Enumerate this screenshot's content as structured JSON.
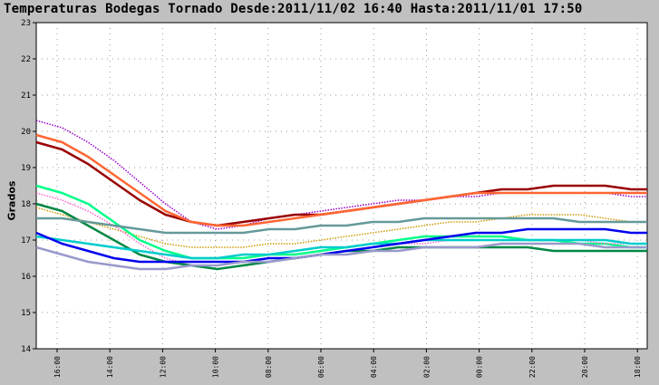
{
  "title": "Temperaturas Bodegas Tornado Desde:2011/11/02 16:40 Hasta:2011/11/01 17:50",
  "chart_data": {
    "type": "line",
    "ylabel": "Grados",
    "xlabel": "",
    "ylim": [
      14,
      23
    ],
    "yticks": [
      14,
      15,
      16,
      17,
      18,
      19,
      20,
      21,
      22,
      23
    ],
    "xticks": [
      "16:00",
      "14:00",
      "12:00",
      "10:00",
      "08:00",
      "06:00",
      "04:00",
      "02:00",
      "00:00",
      "22:00",
      "20:00",
      "18:00"
    ],
    "grid": true,
    "x": [
      0,
      4,
      8,
      12,
      16,
      20,
      24,
      28,
      32,
      36,
      40,
      44,
      48,
      52,
      56,
      60,
      64,
      68,
      72,
      76,
      80,
      84,
      88,
      92,
      94.5
    ],
    "series": [
      {
        "color": "#9900cc",
        "style": "dotted",
        "values": [
          20.3,
          20.1,
          19.7,
          19.2,
          18.6,
          18.0,
          17.5,
          17.3,
          17.4,
          17.6,
          17.7,
          17.8,
          17.9,
          18.0,
          18.1,
          18.1,
          18.2,
          18.2,
          18.3,
          18.3,
          18.3,
          18.3,
          18.3,
          18.2,
          18.2
        ]
      },
      {
        "color": "#990000",
        "style": "solid",
        "values": [
          19.7,
          19.5,
          19.1,
          18.6,
          18.1,
          17.7,
          17.5,
          17.4,
          17.5,
          17.6,
          17.7,
          17.7,
          17.8,
          17.9,
          18.0,
          18.1,
          18.2,
          18.3,
          18.4,
          18.4,
          18.5,
          18.5,
          18.5,
          18.4,
          18.4
        ]
      },
      {
        "color": "#ff6633",
        "style": "solid",
        "values": [
          19.9,
          19.7,
          19.3,
          18.8,
          18.3,
          17.8,
          17.5,
          17.4,
          17.4,
          17.5,
          17.6,
          17.7,
          17.8,
          17.9,
          18.0,
          18.1,
          18.2,
          18.3,
          18.3,
          18.3,
          18.3,
          18.3,
          18.3,
          18.3,
          18.3
        ]
      },
      {
        "color": "#cc9900",
        "style": "dotted",
        "values": [
          17.9,
          17.7,
          17.5,
          17.3,
          17.1,
          16.9,
          16.8,
          16.8,
          16.8,
          16.9,
          16.9,
          17.0,
          17.1,
          17.2,
          17.3,
          17.4,
          17.5,
          17.5,
          17.6,
          17.7,
          17.7,
          17.7,
          17.6,
          17.5,
          17.5
        ]
      },
      {
        "color": "#00ff88",
        "style": "solid",
        "values": [
          18.5,
          18.3,
          18.0,
          17.5,
          17.0,
          16.7,
          16.5,
          16.5,
          16.5,
          16.6,
          16.6,
          16.7,
          16.8,
          16.9,
          17.0,
          17.1,
          17.1,
          17.1,
          17.1,
          17.0,
          17.0,
          16.9,
          16.9,
          16.8,
          16.8
        ]
      },
      {
        "color": "#ff66cc",
        "style": "dotted",
        "values": [
          18.3,
          18.1,
          17.8,
          17.4,
          16.9,
          16.5,
          16.3,
          16.2,
          16.3,
          16.4,
          16.5,
          16.6,
          16.7,
          16.8,
          16.9,
          16.9,
          17.0,
          17.0,
          17.0,
          17.0,
          17.0,
          17.0,
          16.9,
          16.9,
          16.9
        ]
      },
      {
        "color": "#008844",
        "style": "solid",
        "values": [
          18.0,
          17.8,
          17.4,
          17.0,
          16.6,
          16.4,
          16.3,
          16.2,
          16.3,
          16.4,
          16.5,
          16.6,
          16.7,
          16.7,
          16.8,
          16.8,
          16.8,
          16.8,
          16.8,
          16.8,
          16.7,
          16.7,
          16.7,
          16.7,
          16.7
        ]
      },
      {
        "color": "#669999",
        "style": "solid",
        "values": [
          17.6,
          17.6,
          17.5,
          17.4,
          17.3,
          17.2,
          17.2,
          17.2,
          17.2,
          17.3,
          17.3,
          17.4,
          17.4,
          17.5,
          17.5,
          17.6,
          17.6,
          17.6,
          17.6,
          17.6,
          17.6,
          17.5,
          17.5,
          17.5,
          17.5
        ]
      },
      {
        "color": "#00cccc",
        "style": "solid",
        "values": [
          17.1,
          17.0,
          16.9,
          16.8,
          16.7,
          16.6,
          16.5,
          16.5,
          16.6,
          16.6,
          16.7,
          16.8,
          16.8,
          16.9,
          16.9,
          17.0,
          17.0,
          17.0,
          17.0,
          17.0,
          17.0,
          17.0,
          17.0,
          16.9,
          16.9
        ]
      },
      {
        "color": "#0000ee",
        "style": "solid",
        "values": [
          17.2,
          16.9,
          16.7,
          16.5,
          16.4,
          16.4,
          16.4,
          16.4,
          16.4,
          16.5,
          16.5,
          16.6,
          16.7,
          16.8,
          16.9,
          17.0,
          17.1,
          17.2,
          17.2,
          17.3,
          17.3,
          17.3,
          17.3,
          17.2,
          17.2
        ]
      },
      {
        "color": "#9999cc",
        "style": "solid",
        "values": [
          16.8,
          16.6,
          16.4,
          16.3,
          16.2,
          16.2,
          16.3,
          16.3,
          16.4,
          16.4,
          16.5,
          16.6,
          16.6,
          16.7,
          16.7,
          16.8,
          16.8,
          16.8,
          16.9,
          16.9,
          16.9,
          16.9,
          16.8,
          16.8,
          16.8
        ]
      }
    ]
  }
}
